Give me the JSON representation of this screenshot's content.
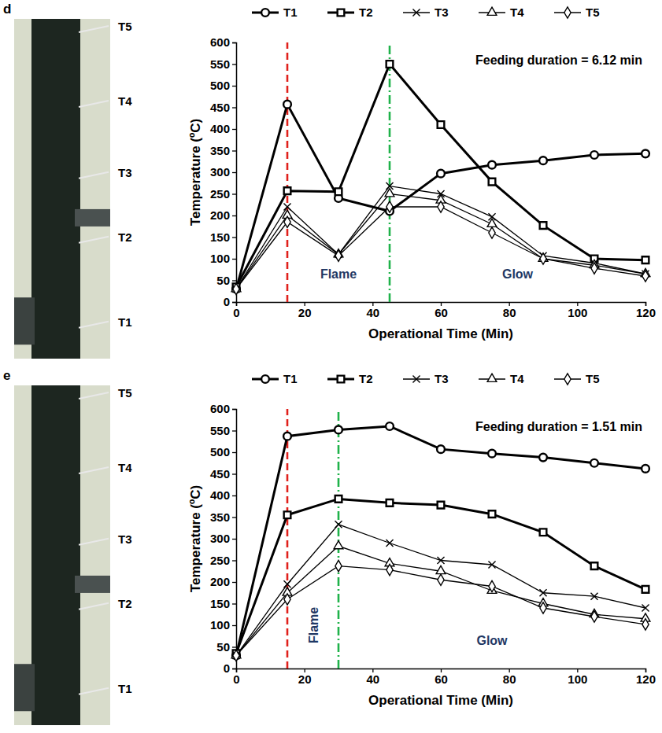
{
  "chart_data": [
    {
      "type": "line",
      "panel_label": "d",
      "sensor_labels": [
        "T5",
        "T4",
        "T3",
        "T2",
        "T1"
      ],
      "note": "Feeding duration = 6.12 min",
      "phases": [
        "Flame",
        "Glow"
      ],
      "reference_lines": [
        {
          "x": 15,
          "color": "#e0201b",
          "line_style": "dashed"
        },
        {
          "x": 45,
          "color": "#1fb24a",
          "line_style": "dashdot"
        }
      ],
      "x_label": "Operational Time (Min)",
      "y_label": "Temperature (ºC)",
      "x": [
        0,
        15,
        30,
        45,
        60,
        75,
        90,
        105,
        120
      ],
      "xlim": [
        0,
        120
      ],
      "xticks": [
        0,
        20,
        40,
        60,
        80,
        100,
        120
      ],
      "ylim": [
        0,
        600
      ],
      "yticks": [
        0,
        50,
        100,
        150,
        200,
        250,
        300,
        350,
        400,
        450,
        500,
        550,
        600
      ],
      "grid": false,
      "legend": "top",
      "series": [
        {
          "name": "T1",
          "color": "#000000",
          "marker": "circle",
          "values": [
            30,
            457,
            240,
            210,
            297,
            317,
            327,
            340,
            343
          ]
        },
        {
          "name": "T2",
          "color": "#000000",
          "marker": "square",
          "values": [
            35,
            257,
            255,
            550,
            410,
            278,
            177,
            100,
            97
          ]
        },
        {
          "name": "T3",
          "color": "#000000",
          "marker": "x",
          "values": [
            30,
            220,
            110,
            268,
            250,
            197,
            107,
            90,
            65
          ]
        },
        {
          "name": "T4",
          "color": "#000000",
          "marker": "triangle",
          "values": [
            30,
            200,
            110,
            250,
            235,
            180,
            100,
            85,
            65
          ]
        },
        {
          "name": "T5",
          "color": "#000000",
          "marker": "diamond",
          "values": [
            30,
            185,
            107,
            220,
            220,
            160,
            100,
            78,
            60
          ]
        }
      ]
    },
    {
      "type": "line",
      "panel_label": "e",
      "sensor_labels": [
        "T5",
        "T4",
        "T3",
        "T2",
        "T1"
      ],
      "note": "Feeding duration = 1.51 min",
      "phases": [
        "Flame",
        "Glow"
      ],
      "reference_lines": [
        {
          "x": 15,
          "color": "#e0201b",
          "line_style": "dashed"
        },
        {
          "x": 30,
          "color": "#1fb24a",
          "line_style": "dashdot"
        }
      ],
      "x_label": "Operational Time (Min)",
      "y_label": "Temperature (ºC)",
      "x": [
        0,
        15,
        30,
        45,
        60,
        75,
        90,
        105,
        120
      ],
      "xlim": [
        0,
        120
      ],
      "xticks": [
        0,
        20,
        40,
        60,
        80,
        100,
        120
      ],
      "ylim": [
        0,
        600
      ],
      "yticks": [
        0,
        50,
        100,
        150,
        200,
        250,
        300,
        350,
        400,
        450,
        500,
        550,
        600
      ],
      "grid": false,
      "legend": "top",
      "series": [
        {
          "name": "T1",
          "color": "#000000",
          "marker": "circle",
          "values": [
            30,
            537,
            552,
            560,
            507,
            497,
            488,
            475,
            462
          ]
        },
        {
          "name": "T2",
          "color": "#000000",
          "marker": "square",
          "values": [
            35,
            355,
            392,
            383,
            378,
            357,
            315,
            237,
            183
          ]
        },
        {
          "name": "T3",
          "color": "#000000",
          "marker": "x",
          "values": [
            30,
            195,
            333,
            290,
            250,
            240,
            175,
            167,
            140
          ]
        },
        {
          "name": "T4",
          "color": "#000000",
          "marker": "triangle",
          "values": [
            30,
            175,
            283,
            243,
            225,
            180,
            150,
            125,
            115
          ]
        },
        {
          "name": "T5",
          "color": "#000000",
          "marker": "diamond",
          "values": [
            30,
            160,
            237,
            228,
            205,
            190,
            140,
            120,
            102
          ]
        }
      ]
    }
  ]
}
